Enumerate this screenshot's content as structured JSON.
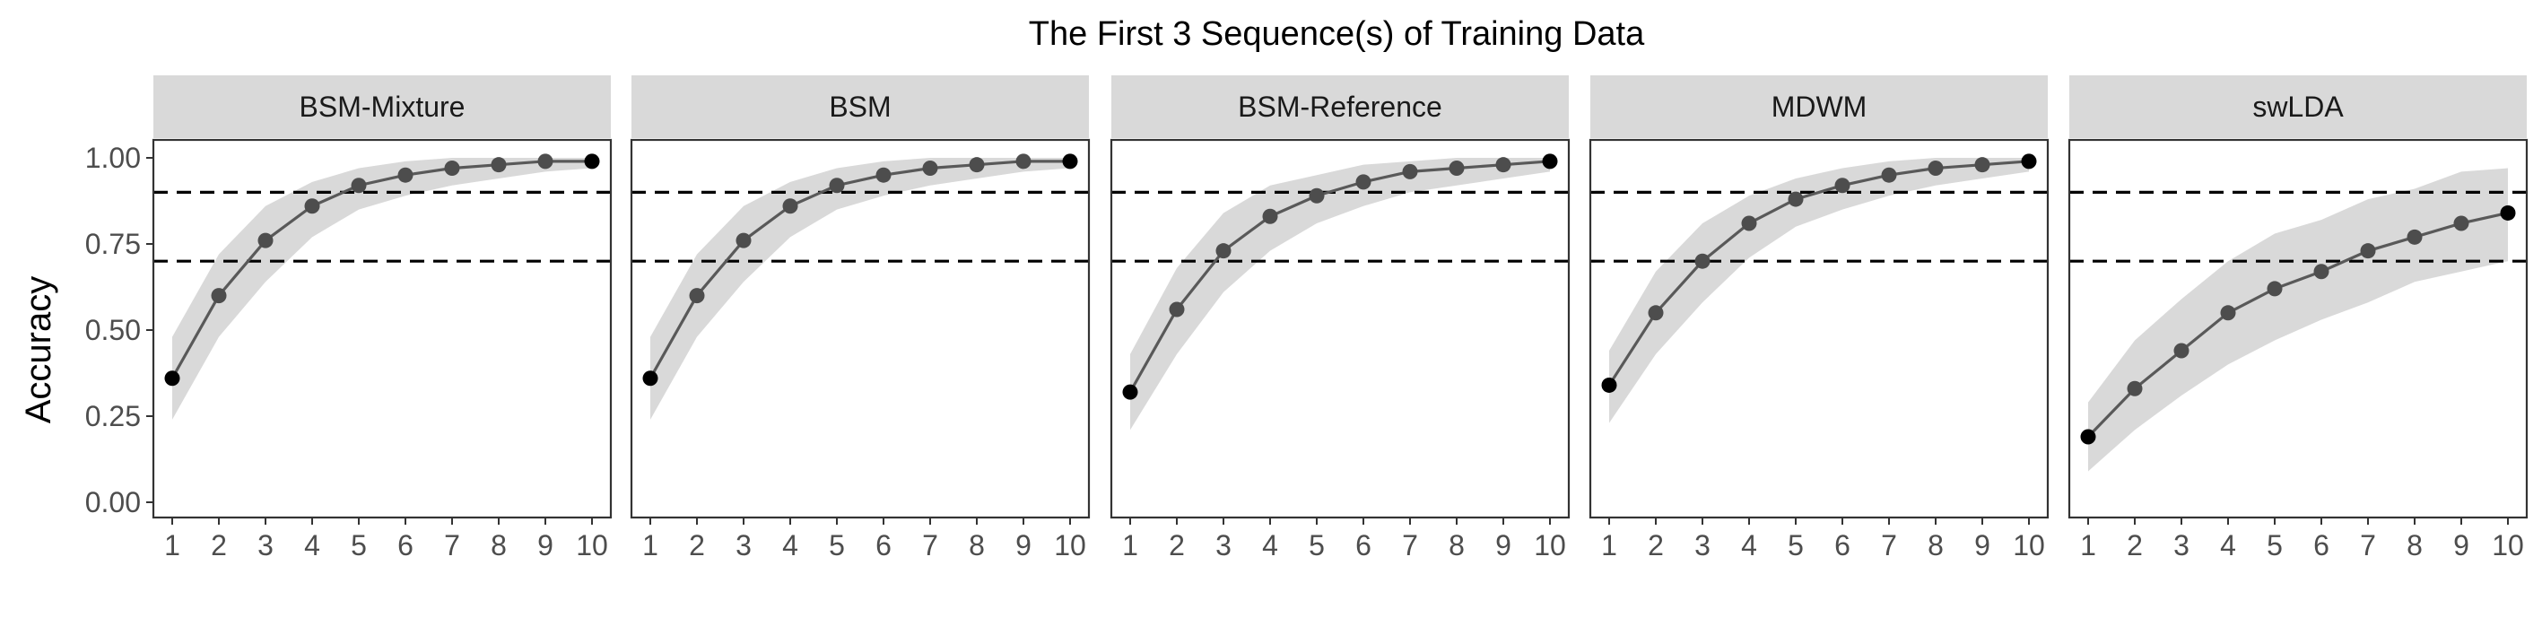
{
  "chart_data": {
    "type": "line",
    "title": "The First 3 Sequence(s) of Training Data",
    "xlabel": "",
    "ylabel": "Accuracy",
    "x": [
      1,
      2,
      3,
      4,
      5,
      6,
      7,
      8,
      9,
      10
    ],
    "xlim": [
      1,
      10
    ],
    "ylim": [
      0,
      1
    ],
    "yticks": [
      "0.00",
      "0.25",
      "0.50",
      "0.75",
      "1.00"
    ],
    "reference_lines": [
      0.7,
      0.9
    ],
    "grid": false,
    "panels": [
      {
        "name": "BSM-Mixture",
        "values": [
          0.36,
          0.6,
          0.76,
          0.86,
          0.92,
          0.95,
          0.97,
          0.98,
          0.99,
          0.99
        ],
        "lower": [
          0.24,
          0.48,
          0.64,
          0.77,
          0.85,
          0.89,
          0.92,
          0.94,
          0.96,
          0.97
        ],
        "upper": [
          0.48,
          0.72,
          0.86,
          0.93,
          0.97,
          0.99,
          1.0,
          1.0,
          1.0,
          1.0
        ]
      },
      {
        "name": "BSM",
        "values": [
          0.36,
          0.6,
          0.76,
          0.86,
          0.92,
          0.95,
          0.97,
          0.98,
          0.99,
          0.99
        ],
        "lower": [
          0.24,
          0.48,
          0.64,
          0.77,
          0.85,
          0.89,
          0.92,
          0.94,
          0.96,
          0.97
        ],
        "upper": [
          0.48,
          0.72,
          0.86,
          0.93,
          0.97,
          0.99,
          1.0,
          1.0,
          1.0,
          1.0
        ]
      },
      {
        "name": "BSM-Reference",
        "values": [
          0.32,
          0.56,
          0.73,
          0.83,
          0.89,
          0.93,
          0.96,
          0.97,
          0.98,
          0.99
        ],
        "lower": [
          0.21,
          0.43,
          0.61,
          0.73,
          0.81,
          0.86,
          0.9,
          0.92,
          0.94,
          0.96
        ],
        "upper": [
          0.43,
          0.68,
          0.84,
          0.92,
          0.95,
          0.98,
          0.99,
          1.0,
          1.0,
          1.0
        ]
      },
      {
        "name": "MDWM",
        "values": [
          0.34,
          0.55,
          0.7,
          0.81,
          0.88,
          0.92,
          0.95,
          0.97,
          0.98,
          0.99
        ],
        "lower": [
          0.23,
          0.43,
          0.58,
          0.71,
          0.8,
          0.85,
          0.89,
          0.92,
          0.94,
          0.96
        ],
        "upper": [
          0.44,
          0.67,
          0.81,
          0.89,
          0.94,
          0.97,
          0.99,
          1.0,
          1.0,
          1.0
        ]
      },
      {
        "name": "swLDA",
        "values": [
          0.19,
          0.33,
          0.44,
          0.55,
          0.62,
          0.67,
          0.73,
          0.77,
          0.81,
          0.84
        ],
        "lower": [
          0.09,
          0.21,
          0.31,
          0.4,
          0.47,
          0.53,
          0.58,
          0.64,
          0.67,
          0.7
        ],
        "upper": [
          0.29,
          0.47,
          0.59,
          0.7,
          0.78,
          0.82,
          0.88,
          0.91,
          0.96,
          0.97
        ]
      }
    ]
  },
  "colors": {
    "strip": "#d9d9d9",
    "ribbon": "#d9d9d9",
    "line": "#595959",
    "point": "#4d4d4d",
    "endpoint": "#000000",
    "reference": "#000000"
  }
}
